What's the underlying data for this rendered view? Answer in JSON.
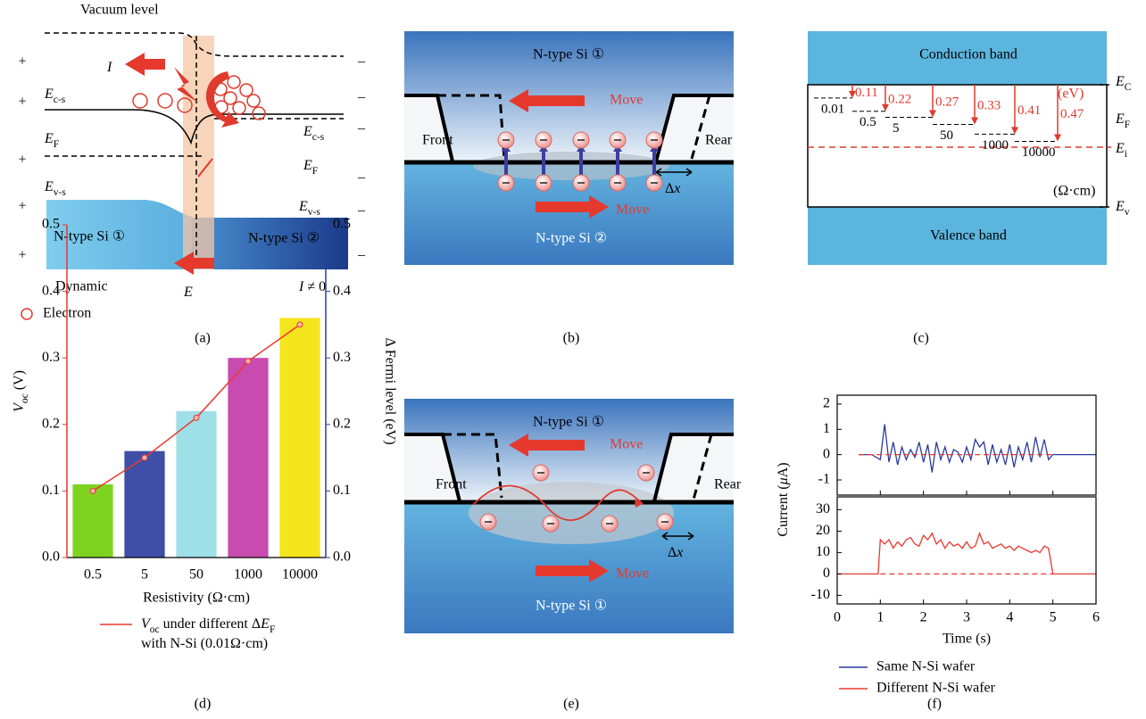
{
  "panel_labels": [
    "(a)",
    "(b)",
    "(c)",
    "(d)",
    "(e)",
    "(f)"
  ],
  "a": {
    "vacuum_level": "Vacuum level",
    "plus": [
      "+",
      "+",
      "+",
      "+",
      "+"
    ],
    "minus": [
      "–",
      "–",
      "–",
      "–",
      "–",
      "–"
    ],
    "current": [
      {
        "i": "I"
      }
    ],
    "ec_left": [
      {
        "i": "E"
      },
      {
        "sub": "c-s"
      }
    ],
    "ec_right": [
      {
        "i": "E"
      },
      {
        "sub": "c-s"
      }
    ],
    "ef_left": [
      {
        "i": "E"
      },
      {
        "sub": "F"
      }
    ],
    "ef_right": [
      {
        "i": "E"
      },
      {
        "sub": "F"
      }
    ],
    "ev_left": [
      {
        "i": "E"
      },
      {
        "sub": "v-s"
      }
    ],
    "ev_right": [
      {
        "i": "E"
      },
      {
        "sub": "v-s"
      }
    ],
    "si1": "N-type Si ①",
    "si2": "N-type Si ②",
    "dynamic": "Dynamic",
    "field": [
      {
        "i": "E"
      }
    ],
    "current_nonzero": [
      {
        "i": "I"
      },
      " ≠ 0"
    ],
    "electron_legend": "Electron"
  },
  "b": {
    "top": "N-type Si ①",
    "move_top": "Move",
    "front": "Front",
    "rear": "Rear",
    "dx": [
      "Δ",
      {
        "i": "x"
      }
    ],
    "move_bottom": "Move",
    "bottom": "N-type Si ②"
  },
  "c": {
    "conduction": "Conduction band",
    "valence": "Valence band",
    "ec": [
      {
        "i": "E"
      },
      {
        "sub": "C"
      }
    ],
    "ef": [
      {
        "i": "E"
      },
      {
        "sub": "F"
      }
    ],
    "ei": [
      {
        "i": "E"
      },
      {
        "sub": "i"
      }
    ],
    "ev": [
      {
        "i": "E"
      },
      {
        "sub": "v"
      }
    ],
    "energy_unit": "(eV)",
    "resistivity_unit": "(Ω·cm)",
    "resistivities": [
      0.01,
      0.5,
      5,
      50,
      1000,
      10000
    ],
    "energies": [
      0.11,
      0.22,
      0.27,
      0.33,
      0.41,
      0.47
    ]
  },
  "e": {
    "top": "N-type Si ①",
    "move_top": "Move",
    "front": "Front",
    "rear": "Rear",
    "dx": [
      "Δ",
      {
        "i": "x"
      }
    ],
    "move_bottom": "Move",
    "bottom": "N-type Si ①"
  },
  "chart_data": [
    {
      "type": "bar",
      "categories": [
        "0.5",
        "5",
        "50",
        "1000",
        "10000"
      ],
      "xlabel": "Resistivity (Ω·cm)",
      "ylabel": [
        {
          "i": "V"
        },
        {
          "sub": "oc"
        },
        " (V)"
      ],
      "y2label": "Δ Fermi level (eV)",
      "ylim": [
        0,
        0.5
      ],
      "yticks": [
        {
          "value": 0,
          "label": "0.0"
        },
        0.1,
        0.2,
        0.3,
        0.4,
        0.5
      ],
      "y2lim": [
        0,
        0.5
      ],
      "y2ticks": [
        {
          "value": 0,
          "label": "0.0"
        },
        0.1,
        0.2,
        0.3,
        0.4,
        0.5
      ],
      "axis_color": "#e8392f",
      "axis2_color": "#2b3a9e",
      "series": [
        {
          "type": "bar",
          "axis": "y2",
          "colors": [
            "#7ed321",
            "#3f4ea6",
            "#9fdfe8",
            "#c84bb0",
            "#f5e51c"
          ],
          "values": [
            0.11,
            0.16,
            0.22,
            0.3,
            0.36
          ]
        },
        {
          "type": "line",
          "color": "#e8392f",
          "name": [
            [
              {
                "i": "V"
              },
              {
                "sub": "oc"
              },
              " under different Δ",
              {
                "i": "E"
              },
              {
                "sub": "F"
              }
            ],
            [
              "with N-Si (0.01Ω·cm)"
            ]
          ],
          "values": [
            0.1,
            0.15,
            0.21,
            0.295,
            0.35
          ]
        }
      ]
    },
    {
      "type": "line",
      "xlim": [
        0,
        6
      ],
      "ylim": [
        -1.6,
        2.35
      ],
      "yticks": [
        -1,
        0,
        1,
        2
      ],
      "series": [
        {
          "name": "Same N-Si wafer",
          "color": "#2b3a9e",
          "x": [
            0.5,
            0.8,
            1.0,
            1.1,
            1.2,
            1.3,
            1.4,
            1.5,
            1.6,
            1.7,
            1.8,
            1.9,
            2.0,
            2.1,
            2.2,
            2.3,
            2.4,
            2.5,
            2.6,
            2.7,
            2.8,
            2.9,
            3.0,
            3.1,
            3.2,
            3.3,
            3.4,
            3.5,
            3.6,
            3.7,
            3.8,
            3.9,
            4.0,
            4.1,
            4.2,
            4.3,
            4.4,
            4.5,
            4.6,
            4.7,
            4.8,
            4.9,
            5.0,
            5.5,
            6.0
          ],
          "values": [
            0,
            0,
            -0.2,
            1.2,
            -0.3,
            0.5,
            -0.4,
            0.3,
            -0.2,
            0.2,
            -0.1,
            0.5,
            -0.3,
            0.4,
            -0.7,
            0.5,
            -0.2,
            0.3,
            -0.3,
            0.2,
            0.1,
            -0.3,
            0.3,
            -0.2,
            0.6,
            0.3,
            0.5,
            -0.4,
            0.4,
            -0.3,
            0.2,
            -0.4,
            0.4,
            -0.5,
            0.3,
            -0.2,
            0.5,
            -0.3,
            0.7,
            -0.1,
            0.6,
            -0.2,
            0,
            0,
            0
          ]
        },
        {
          "color": "#e8392f",
          "dash": true,
          "x": [
            0.5,
            5
          ],
          "values": [
            0,
            0
          ]
        }
      ]
    },
    {
      "type": "line",
      "xlim": [
        0,
        6
      ],
      "ylim": [
        -14,
        36
      ],
      "yticks": [
        -10,
        0,
        10,
        20,
        30
      ],
      "xticks": [
        0,
        1,
        2,
        3,
        4,
        5,
        6
      ],
      "xlabel": "Time (s)",
      "ylabel": [
        "Current (",
        {
          "i": "μ"
        },
        "A)"
      ],
      "series": [
        {
          "name": "Different N-Si wafer",
          "color": "#e8392f",
          "x": [
            0,
            0.95,
            1.0,
            1.1,
            1.2,
            1.3,
            1.4,
            1.5,
            1.6,
            1.7,
            1.8,
            1.9,
            2.0,
            2.1,
            2.2,
            2.3,
            2.4,
            2.5,
            2.6,
            2.7,
            2.8,
            2.9,
            3.0,
            3.1,
            3.2,
            3.3,
            3.4,
            3.5,
            3.6,
            3.7,
            3.8,
            3.9,
            4.0,
            4.1,
            4.2,
            4.3,
            4.4,
            4.5,
            4.6,
            4.7,
            4.8,
            4.9,
            5.0,
            6.0
          ],
          "values": [
            0,
            0,
            16,
            14,
            16,
            12,
            15,
            13,
            16,
            17,
            14,
            13,
            18,
            16,
            19,
            14,
            16,
            12,
            15,
            13,
            14,
            12,
            15,
            12,
            13,
            19,
            14,
            15,
            12,
            13,
            14,
            12,
            13,
            11,
            13,
            12,
            11,
            10,
            11,
            10,
            13,
            12,
            0,
            0
          ]
        },
        {
          "color": "#e8392f",
          "dash": true,
          "x": [
            1,
            5
          ],
          "values": [
            0,
            0
          ]
        }
      ]
    }
  ]
}
